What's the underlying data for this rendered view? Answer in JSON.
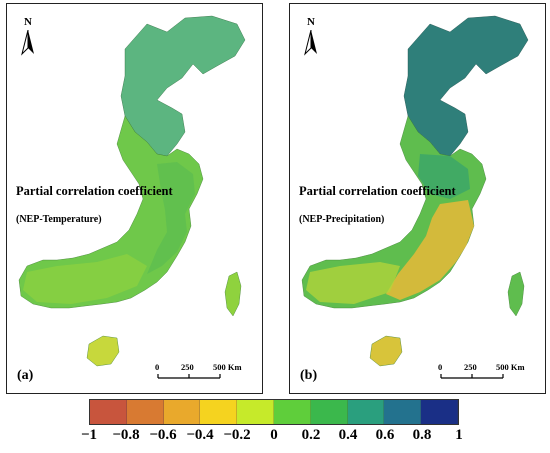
{
  "panels": [
    {
      "id": "a",
      "letter": "(a)",
      "title": "Partial correlation coefficient",
      "subtitle": "(NEP-Temperature)",
      "north_label": "N",
      "scale": {
        "labels": [
          "0",
          "250",
          "500 Km"
        ]
      },
      "dominant_class": "0 to 0.2",
      "colors": {
        "main": "#6fc84a",
        "north": "#3fa86a",
        "coast": "#5cbe50",
        "south": "#8fd23e",
        "island": "#c7d83c"
      }
    },
    {
      "id": "b",
      "letter": "(b)",
      "title": "Partial correlation coefficient",
      "subtitle": "(NEP-Precipitation)",
      "north_label": "N",
      "scale": {
        "labels": [
          "0",
          "250",
          "500 Km"
        ]
      },
      "dominant_class": "north 0.4 to 0.8, southeast -0.6 to -0.2",
      "colors": {
        "main": "#5fbd4e",
        "north": "#2f7f7a",
        "coast": "#3aa56a",
        "south": "#e0b93a",
        "island": "#d8c43a"
      }
    }
  ],
  "legend": {
    "labels": [
      "−1",
      "−0.8",
      "−0.6",
      "−0.4",
      "−0.2",
      "0",
      "0.2",
      "0.4",
      "0.6",
      "0.8",
      "1"
    ],
    "colors": [
      "#c8553d",
      "#d87a32",
      "#e9a92c",
      "#f5d31f",
      "#c6ea2a",
      "#5fce3b",
      "#3bb84c",
      "#2a9f7e",
      "#23728e",
      "#1a2f86"
    ]
  }
}
